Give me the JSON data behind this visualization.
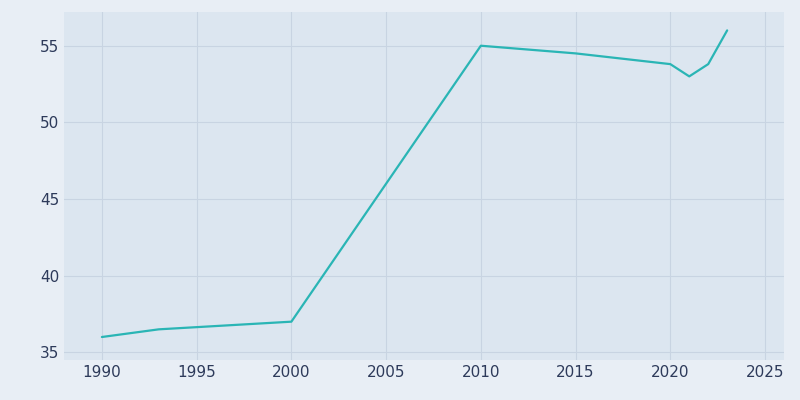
{
  "years": [
    1990,
    1993,
    2000,
    2010,
    2015,
    2020,
    2021,
    2022,
    2023
  ],
  "population": [
    36.0,
    36.5,
    37.0,
    55.0,
    54.5,
    53.8,
    53.0,
    53.8,
    56.0
  ],
  "line_color": "#2ab5b5",
  "background_color": "#e8eef5",
  "axes_background": "#dce6f0",
  "grid_color": "#c8d4e2",
  "xlabel": "",
  "ylabel": "",
  "xlim": [
    1988,
    2026
  ],
  "ylim": [
    34.5,
    57.2
  ],
  "xticks": [
    1990,
    1995,
    2000,
    2005,
    2010,
    2015,
    2020,
    2025
  ],
  "yticks": [
    35,
    40,
    45,
    50,
    55
  ],
  "tick_label_color": "#2d3a5a",
  "tick_label_size": 11,
  "line_width": 1.6
}
